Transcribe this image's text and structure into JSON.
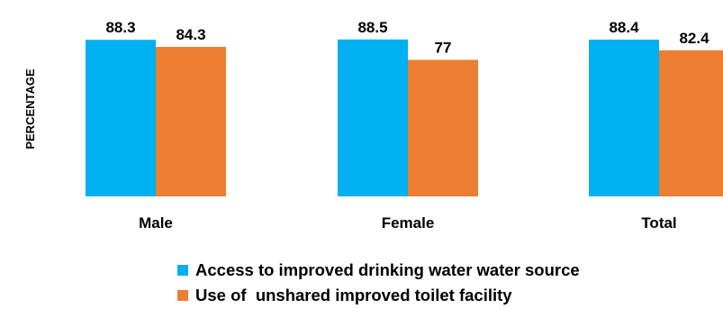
{
  "chart_data": {
    "type": "bar",
    "title": "",
    "xlabel": "",
    "ylabel": "PERCENTAGE",
    "ylim": [
      0,
      100
    ],
    "grid": false,
    "legend_position": "bottom",
    "categories": [
      "Male",
      "Female",
      "Total"
    ],
    "series": [
      {
        "name": "Access to improved drinking water water source",
        "color": "#00b0f0",
        "values": [
          88.3,
          88.5,
          88.4
        ],
        "labels": [
          "88.3",
          "88.5",
          "88.4"
        ]
      },
      {
        "name": "Use of  unshared improved toilet facility",
        "color": "#ed7d31",
        "values": [
          84.3,
          77,
          82.4
        ],
        "labels": [
          "84.3",
          "77",
          "82.4"
        ]
      }
    ]
  }
}
